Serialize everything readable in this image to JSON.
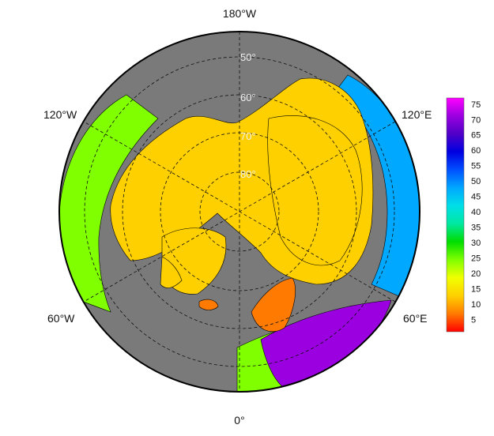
{
  "map": {
    "projection": "north-polar-stereographic",
    "background_color": "#7a7a7a",
    "land_outline_color": "#000000",
    "graticule_style": "dashed",
    "longitude_labels": [
      {
        "text": "180°W",
        "position": "top"
      },
      {
        "text": "120°E",
        "position": "upper-right"
      },
      {
        "text": "60°E",
        "position": "lower-right"
      },
      {
        "text": "0°",
        "position": "bottom"
      },
      {
        "text": "60°W",
        "position": "lower-left"
      },
      {
        "text": "120°W",
        "position": "upper-left"
      }
    ],
    "latitude_labels": [
      "50°",
      "60°",
      "70°",
      "80°"
    ],
    "regions": [
      {
        "name": "north-america-belt",
        "value": 25
      },
      {
        "name": "arctic-interior",
        "value": 12
      },
      {
        "name": "greenland-west-coast",
        "value": 15
      },
      {
        "name": "greenland-east",
        "value": 12
      },
      {
        "name": "iceland",
        "value": 8
      },
      {
        "name": "scandinavia",
        "value": 6
      },
      {
        "name": "siberia",
        "value": 12
      },
      {
        "name": "east-asia-belt",
        "value": 45
      },
      {
        "name": "central-europe",
        "value": 25
      },
      {
        "name": "russia-south",
        "value": 70
      }
    ]
  },
  "colorbar": {
    "ticks": [
      "75",
      "70",
      "65",
      "60",
      "55",
      "50",
      "45",
      "40",
      "35",
      "30",
      "25",
      "20",
      "15",
      "10",
      "5"
    ],
    "min": 1,
    "max": 77,
    "stops": [
      "#ff0000",
      "#ff7a00",
      "#ffd000",
      "#f0ff00",
      "#7fff00",
      "#00dd00",
      "#00e8a0",
      "#00dfe8",
      "#00a8ff",
      "#0050ff",
      "#0000e0",
      "#5000c8",
      "#9a00e0",
      "#ff00ff"
    ]
  }
}
